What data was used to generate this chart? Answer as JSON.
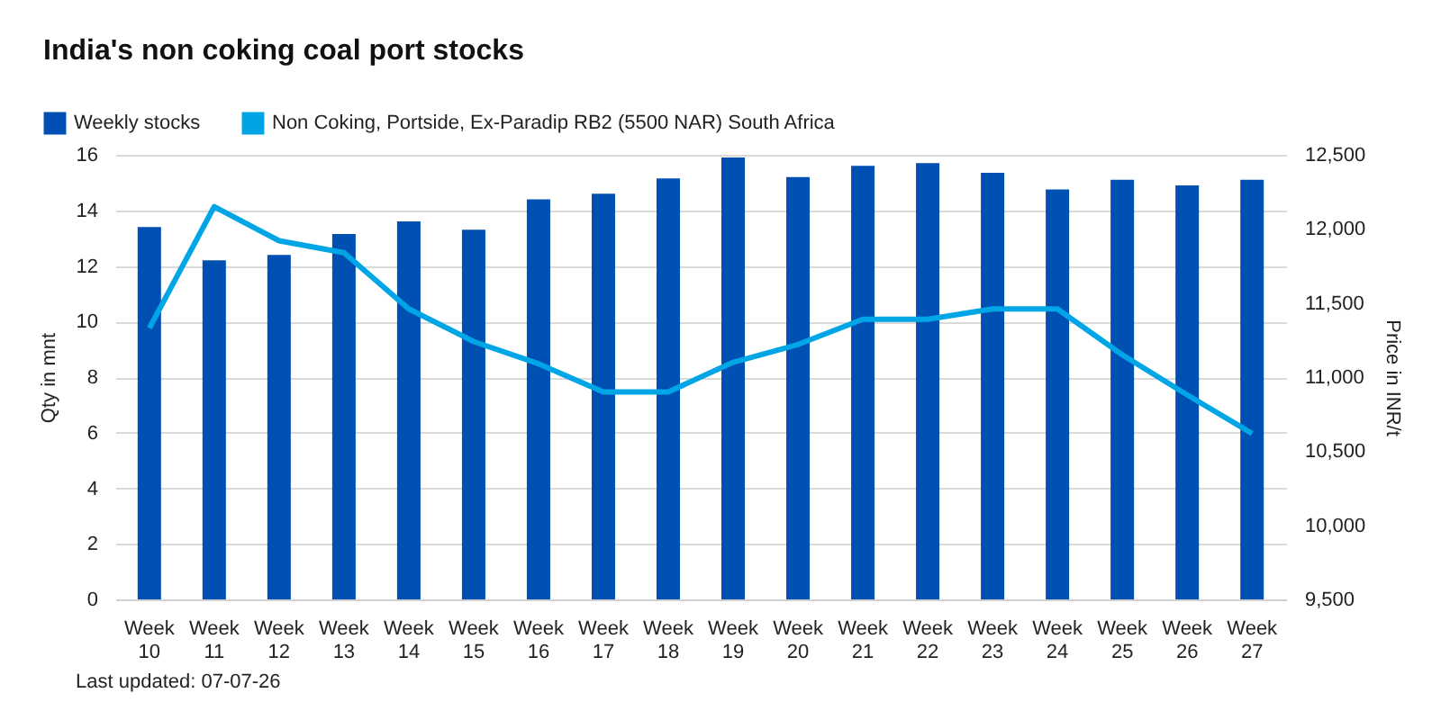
{
  "chart_data": {
    "type": "bar",
    "title": "India's non coking coal port stocks",
    "ylabel": "Qty in mnt",
    "y2label": "Price in INR/t",
    "categories": [
      "Week 10",
      "Week 11",
      "Week 12",
      "Week 13",
      "Week 14",
      "Week 15",
      "Week 16",
      "Week 17",
      "Week 18",
      "Week 19",
      "Week 20",
      "Week 21",
      "Week 22",
      "Week 23",
      "Week 24",
      "Week 25",
      "Week 26",
      "Week 27"
    ],
    "series": [
      {
        "name": "Weekly stocks",
        "color": "#0050b4",
        "values": [
          13.4,
          12.2,
          12.4,
          13.15,
          13.6,
          13.3,
          14.4,
          14.6,
          15.15,
          15.9,
          15.2,
          15.6,
          15.7,
          15.35,
          14.75,
          15.1,
          14.9,
          15.1
        ]
      },
      {
        "name": "Non Coking, Portside, Ex-Paradip RB2 (5500 NAR) South Africa",
        "type": "line",
        "axis": "y2",
        "color": "#00a5e6",
        "values": [
          11330,
          12150,
          11920,
          11840,
          11460,
          11240,
          11090,
          10900,
          10900,
          11100,
          11220,
          11390,
          11390,
          11460,
          11460,
          11150,
          10880,
          10620
        ]
      }
    ],
    "ylim": [
      0,
      16
    ],
    "yticks": [
      0,
      2,
      4,
      6,
      8,
      10,
      12,
      14,
      16
    ],
    "y2lim": [
      9500,
      12500
    ],
    "y2ticks": [
      {
        "value": 9500,
        "label": "9,500"
      },
      {
        "value": 10000,
        "label": "10,000"
      },
      {
        "value": 10500,
        "label": "10,500"
      },
      {
        "value": 11000,
        "label": "11,000"
      },
      {
        "value": 11500,
        "label": "11,500"
      },
      {
        "value": 12000,
        "label": "12,000"
      },
      {
        "value": 12500,
        "label": "12,500"
      }
    ],
    "grid": "y",
    "legend": "top left",
    "marker": "none",
    "line_style": "solid",
    "annotations": [
      "Last updated: 07-07-26"
    ]
  }
}
